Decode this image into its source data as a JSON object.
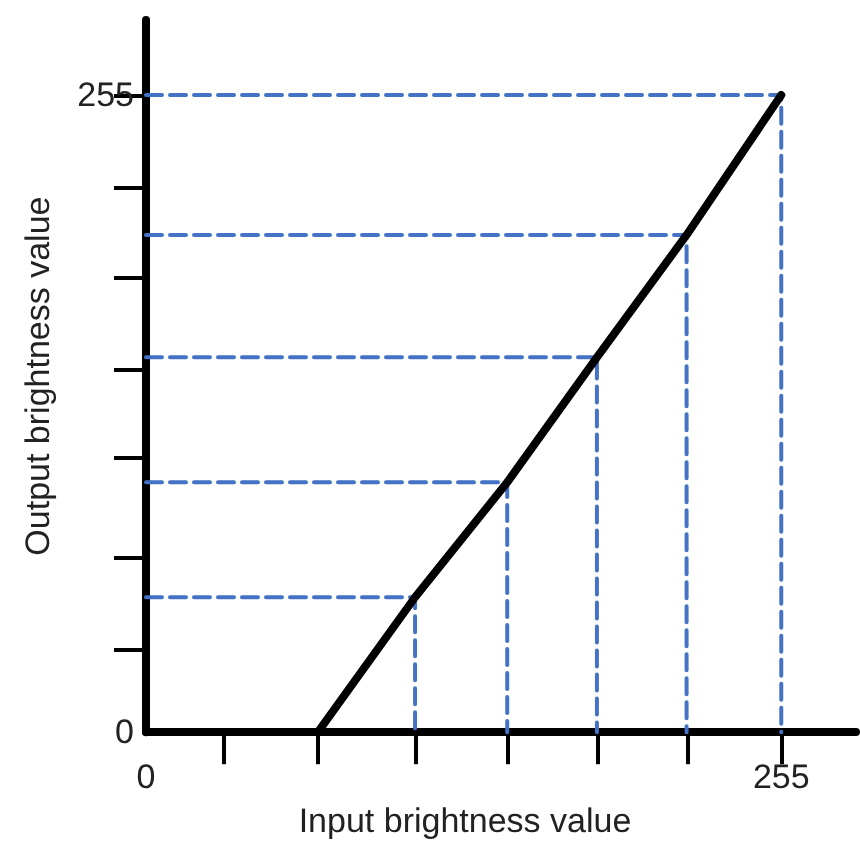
{
  "chart_data": {
    "type": "line",
    "xlabel": "Input brightness value",
    "ylabel": "Output brightness value",
    "xlim": [
      0,
      285
    ],
    "ylim": [
      0,
      285
    ],
    "xticks": [
      0,
      {
        "value": 31,
        "label": null
      },
      {
        "value": 69,
        "label": null
      },
      {
        "value": 108,
        "label": null
      },
      {
        "value": 145,
        "label": null
      },
      {
        "value": 181,
        "label": null
      },
      {
        "value": 217,
        "label": null
      },
      255
    ],
    "yticks": [
      0,
      {
        "value": 33,
        "label": null
      },
      {
        "value": 70,
        "label": null
      },
      {
        "value": 110,
        "label": null
      },
      {
        "value": 145,
        "label": null
      },
      {
        "value": 182,
        "label": null
      },
      {
        "value": 218,
        "label": null
      },
      255
    ],
    "grid": false,
    "marker": "none",
    "series": [
      {
        "color": "#000000",
        "x": [
          69,
          108,
          145,
          181,
          217,
          255
        ],
        "values": [
          0,
          54,
          100,
          150,
          199,
          255
        ],
        "line_style": "solid"
      },
      {
        "color": "#4472c4",
        "x": [
          0,
          108,
          108
        ],
        "values": [
          54,
          54,
          0
        ],
        "line_style": "dashed"
      },
      {
        "color": "#4472c4",
        "x": [
          0,
          145,
          145
        ],
        "values": [
          100,
          100,
          0
        ],
        "line_style": "dashed"
      },
      {
        "color": "#4472c4",
        "x": [
          0,
          181,
          181
        ],
        "values": [
          150,
          150,
          0
        ],
        "line_style": "dashed"
      },
      {
        "color": "#4472c4",
        "x": [
          0,
          217,
          217
        ],
        "values": [
          199,
          199,
          0
        ],
        "line_style": "dashed"
      },
      {
        "color": "#4472c4",
        "x": [
          0,
          255,
          255
        ],
        "values": [
          255,
          255,
          0
        ],
        "line_style": "dashed"
      }
    ]
  }
}
